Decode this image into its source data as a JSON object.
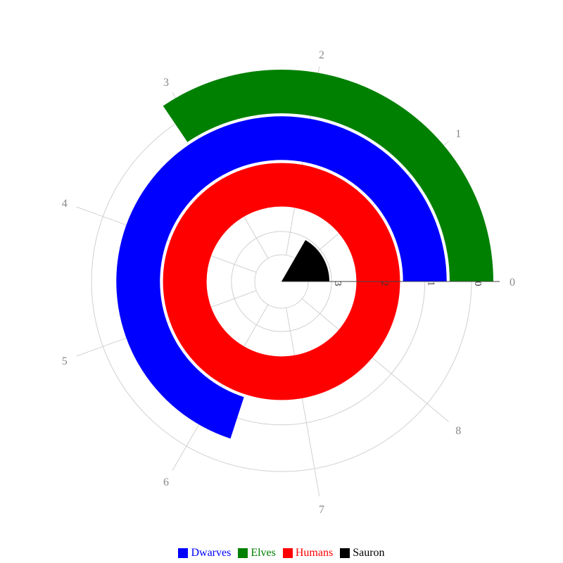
{
  "chart_data": {
    "type": "bar",
    "subtype": "polar-radial-bar",
    "radial_axis": {
      "range": [
        0,
        3.5
      ],
      "ticks": [
        "0",
        "1",
        "2",
        "3"
      ],
      "reversed": true
    },
    "angular_axis": {
      "ticks": [
        "0",
        "1",
        "2",
        "3",
        "4",
        "5",
        "6",
        "7",
        "8"
      ],
      "full_circle_units": 9
    },
    "grid": true,
    "legend_position": "bottom",
    "series": [
      {
        "name": "Dwarves",
        "radial_value": 1,
        "angular_value": 6.3,
        "color": "#0000ff"
      },
      {
        "name": "Elves",
        "radial_value": 0,
        "angular_value": 3.1,
        "color": "#008000"
      },
      {
        "name": "Humans",
        "radial_value": 2,
        "angular_value": 9,
        "color": "#ff0000"
      },
      {
        "name": "Sauron",
        "radial_value": 3,
        "angular_value": 1.5,
        "color": "#000000"
      }
    ]
  }
}
